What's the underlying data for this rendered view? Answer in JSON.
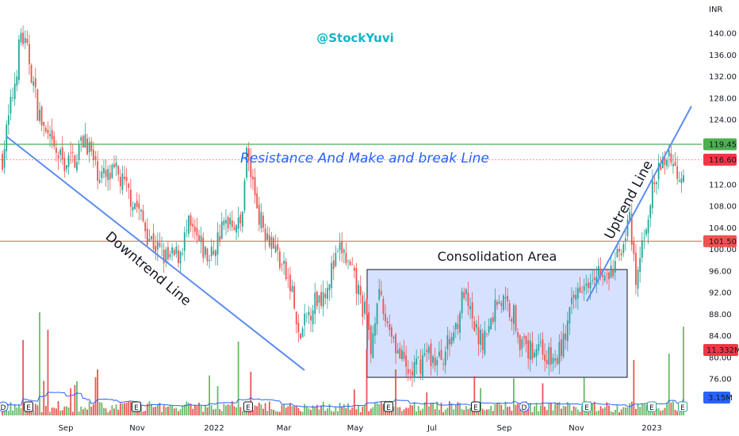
{
  "watermark": "@StockYuvi",
  "currency_label": "INR",
  "colors": {
    "up": "#26a69a",
    "down": "#ef5350",
    "vol_up": "#4caf50",
    "vol_down": "#e53935",
    "resistance": "#4caf50",
    "support": "#ef5350",
    "trend": "#5b8def",
    "last_price": "#f23645",
    "consolidation_fill": "#cfdcff",
    "volume_ma": "#2962ff",
    "watermark": "#10b5c8",
    "annotation_blue": "#2962ff"
  },
  "annotations": {
    "resistance_label": "Resistance And Make and break Line",
    "downtrend_label": "Downtrend Line",
    "uptrend_label": "Uptrend Line",
    "consolidation_label": "Consolidation Area"
  },
  "price_tags": {
    "resistance": "119.45",
    "last_price": "116.60",
    "support": "101.50",
    "volume": "11.332M",
    "volume_ma": "3.15M"
  },
  "chart_data": {
    "type": "candlestick",
    "y_ticks": [
      "140.00",
      "136.00",
      "132.00",
      "128.00",
      "124.00",
      "120.00",
      "116.00",
      "112.00",
      "108.00",
      "104.00",
      "100.00",
      "96.00",
      "92.00",
      "88.00",
      "84.00",
      "80.00",
      "76.00"
    ],
    "x_ticks": [
      "Sep",
      "Nov",
      "2022",
      "Mar",
      "May",
      "Jul",
      "Sep",
      "Nov",
      "2023"
    ],
    "ylim": [
      72,
      143
    ],
    "levels": {
      "resistance": 119.45,
      "last_price": 116.6,
      "support": 101.5
    },
    "close_path": [
      [
        0,
        117
      ],
      [
        3,
        124
      ],
      [
        6,
        131
      ],
      [
        9,
        140
      ],
      [
        13,
        135
      ],
      [
        17,
        126
      ],
      [
        21,
        121
      ],
      [
        25,
        118
      ],
      [
        30,
        116
      ],
      [
        35,
        117
      ],
      [
        40,
        121
      ],
      [
        45,
        115
      ],
      [
        50,
        113
      ],
      [
        55,
        114
      ],
      [
        60,
        111
      ],
      [
        65,
        108
      ],
      [
        70,
        103
      ],
      [
        75,
        100
      ],
      [
        80,
        98
      ],
      [
        85,
        99
      ],
      [
        90,
        104
      ],
      [
        95,
        101
      ],
      [
        100,
        98
      ],
      [
        105,
        103
      ],
      [
        110,
        106
      ],
      [
        115,
        104
      ],
      [
        118,
        118
      ],
      [
        121,
        112
      ],
      [
        125,
        105
      ],
      [
        130,
        102
      ],
      [
        135,
        97
      ],
      [
        140,
        92
      ],
      [
        143,
        83
      ],
      [
        146,
        86
      ],
      [
        150,
        90
      ],
      [
        155,
        92
      ],
      [
        160,
        97
      ],
      [
        164,
        100
      ],
      [
        168,
        96
      ],
      [
        172,
        92
      ],
      [
        176,
        87
      ],
      [
        178,
        81
      ],
      [
        181,
        92
      ],
      [
        184,
        88
      ],
      [
        188,
        85
      ],
      [
        192,
        80
      ],
      [
        196,
        77
      ],
      [
        200,
        78
      ],
      [
        205,
        81
      ],
      [
        210,
        79
      ],
      [
        215,
        82
      ],
      [
        219,
        86
      ],
      [
        223,
        92
      ],
      [
        227,
        86
      ],
      [
        231,
        83
      ],
      [
        235,
        85
      ],
      [
        239,
        91
      ],
      [
        243,
        90
      ],
      [
        247,
        88
      ],
      [
        251,
        82
      ],
      [
        255,
        81
      ],
      [
        259,
        83
      ],
      [
        263,
        80
      ],
      [
        267,
        79
      ],
      [
        271,
        83
      ],
      [
        275,
        89
      ],
      [
        279,
        94
      ],
      [
        283,
        95
      ],
      [
        287,
        97
      ],
      [
        291,
        94
      ],
      [
        295,
        96
      ],
      [
        300,
        102
      ],
      [
        303,
        105
      ],
      [
        306,
        93
      ],
      [
        310,
        103
      ],
      [
        314,
        111
      ],
      [
        318,
        115
      ],
      [
        322,
        118
      ],
      [
        326,
        114
      ],
      [
        329,
        115
      ]
    ],
    "volume_series": "daily volume bars, peak 11.332M on last session"
  }
}
